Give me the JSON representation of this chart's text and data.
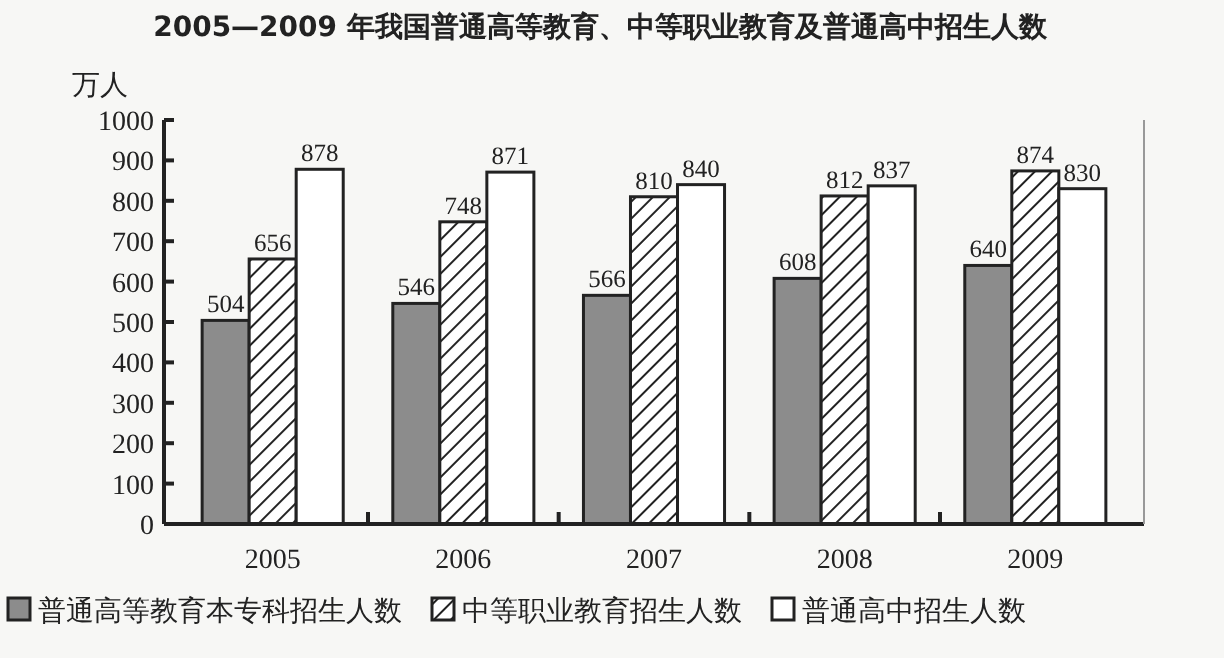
{
  "chart_data": {
    "type": "bar",
    "title": "2005—2009 年我国普通高等教育、中等职业教育及普通高中招生人数",
    "ylabel": "万人",
    "categories": [
      "2005",
      "2006",
      "2007",
      "2008",
      "2009"
    ],
    "series": [
      {
        "name": "普通高等教育本专科招生人数",
        "color": "#8c8c8c",
        "values": [
          504,
          546,
          566,
          608,
          640
        ]
      },
      {
        "name": "中等职业教育招生人数",
        "color": "#222222",
        "values": [
          656,
          748,
          810,
          812,
          874
        ]
      },
      {
        "name": "普通高中招生人数",
        "color": "#ffffff",
        "values": [
          878,
          871,
          840,
          837,
          830
        ]
      }
    ],
    "ylim": [
      0,
      1000
    ],
    "yticks": [
      0,
      100,
      200,
      300,
      400,
      500,
      600,
      700,
      800,
      900,
      1000
    ],
    "data_labels": true,
    "legend": "bottom",
    "grid": false
  }
}
